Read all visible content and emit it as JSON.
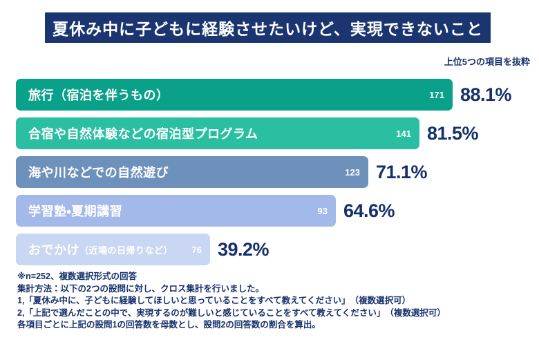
{
  "page": {
    "title": "夏休み中に子どもに経験させたいけど、実現できないこと",
    "top_note": "上位5つの項目を抜粋"
  },
  "colors": {
    "banner_bg": "#1A3570",
    "text_navy": "#16306B",
    "bar_text": "#ffffff"
  },
  "chart_data": {
    "type": "bar",
    "orientation": "horizontal",
    "title": "夏休み中に子どもに経験させたいけど、実現できないこと",
    "note": "上位5つの項目を抜粋",
    "categories": [
      "旅行（宿泊を伴うもの）",
      "合宿や自然体験などの宿泊型プログラム",
      "海や川などでの自然遊び",
      "学習塾・夏期講習",
      "おでかけ（近場の日帰りなど）"
    ],
    "counts": [
      171,
      141,
      123,
      93,
      76
    ],
    "values_percent": [
      88.1,
      81.5,
      71.1,
      64.6,
      39.2
    ],
    "xlim": [
      0,
      100
    ],
    "sample_size": "n=252",
    "rows": [
      {
        "label": "旅行（宿泊を伴うもの）",
        "label_sub": "",
        "count": "171",
        "percent": "88.1%",
        "value": 88.1,
        "color": "#0AA18A"
      },
      {
        "label": "合宿や自然体験などの宿泊型プログラム",
        "label_sub": "",
        "count": "141",
        "percent": "81.5%",
        "value": 81.5,
        "color": "#2BBFA2"
      },
      {
        "label": "海や川などでの自然遊び",
        "label_sub": "",
        "count": "123",
        "percent": "71.1%",
        "value": 71.1,
        "color": "#6E91BC"
      },
      {
        "label": "学習塾・夏期講習",
        "label_sub": "",
        "count": "93",
        "percent": "64.6%",
        "value": 64.6,
        "color": "#A3B9E9"
      },
      {
        "label": "おでかけ",
        "label_sub": "（近場の日帰りなど）",
        "count": "76",
        "percent": "39.2%",
        "value": 39.2,
        "color": "#CAD7F3"
      }
    ]
  },
  "footnotes": {
    "lines": [
      "※n=252、複数選択形式の回答",
      "集計方法：以下の2つの設問に対し、クロス集計を行いました。",
      "1,「夏休み中に、子どもに経験してほしいと思っていることをすべて教えてください」　（複数選択可）",
      "2,「上記で選んだことの中で、実現するのが難しいと感じていることをすべて教えてください」　（複数選択可）",
      "各項目ごとに上記の設問1の回答数を母数とし、設問2の回答数の割合を算出。"
    ]
  }
}
